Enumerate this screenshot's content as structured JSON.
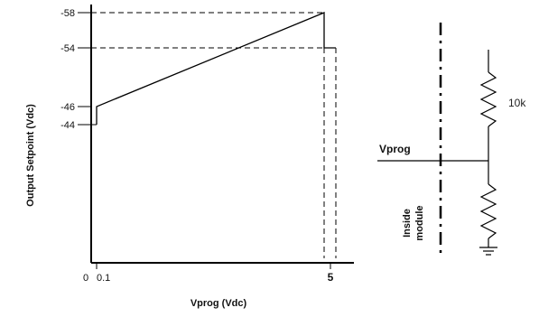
{
  "chart_data": {
    "type": "line",
    "title": "",
    "xlabel": "Vprog (Vdc)",
    "ylabel": "Output Setpoint (Vdc)",
    "x_tick_labels": [
      "0",
      "0.1",
      "5"
    ],
    "y_tick_labels": [
      "-58",
      "-54",
      "-46",
      "-44"
    ],
    "series": [
      {
        "points": [
          {
            "x": 0.1,
            "y": -44
          },
          {
            "x": 0.1,
            "y": -46
          },
          {
            "x": 4.8,
            "y": -58
          },
          {
            "x": 4.8,
            "y": -54
          }
        ]
      }
    ]
  },
  "circuit": {
    "resistor_top_label": "10k",
    "input_label": "Vprog",
    "boundary_label_line1": "Inside",
    "boundary_label_line2": "module"
  }
}
